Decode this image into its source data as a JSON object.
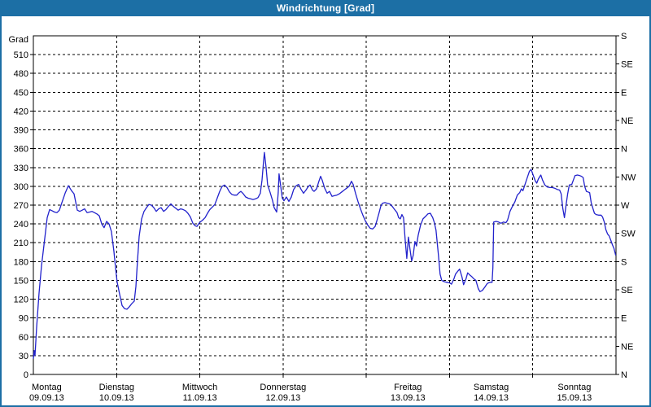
{
  "window": {
    "title": "Windrichtung [Grad]",
    "chrome_color": "#1c6fa5"
  },
  "chart_data": {
    "type": "line",
    "title": "Windrichtung [Grad]",
    "grid": "dashed-horizontal-every-30deg-and-vertical-day-boundaries",
    "y_axis_left": {
      "label": "Grad",
      "min": 0,
      "max": 540,
      "tick_step": 30,
      "ticks": [
        0,
        30,
        60,
        90,
        120,
        150,
        180,
        210,
        240,
        270,
        300,
        330,
        360,
        390,
        420,
        450,
        480,
        510
      ]
    },
    "y_axis_right": {
      "tick_step_deg": 45,
      "labels_bottom_to_top": [
        "N",
        "NE",
        "E",
        "SE",
        "S",
        "SW",
        "W",
        "NW",
        "N",
        "NE",
        "E",
        "SE",
        "S"
      ]
    },
    "x_axis": {
      "days": [
        {
          "name": "Montag",
          "date": "09.09.13"
        },
        {
          "name": "Dienstag",
          "date": "10.09.13"
        },
        {
          "name": "Mittwoch",
          "date": "11.09.13"
        },
        {
          "name": "Donnerstag",
          "date": "12.09.13"
        },
        {
          "name": "Freitag",
          "date": "13.09.13"
        },
        {
          "name": "Samstag",
          "date": "14.09.13"
        },
        {
          "name": "Sonntag",
          "date": "15.09.13"
        }
      ]
    },
    "series": [
      {
        "name": "Windrichtung",
        "color": "#2222cc",
        "x_unit": "days_since_monday_start",
        "y_unit": "degrees",
        "points": [
          [
            0.0,
            25
          ],
          [
            0.01,
            38
          ],
          [
            0.02,
            30
          ],
          [
            0.039,
            75
          ],
          [
            0.068,
            130
          ],
          [
            0.098,
            173
          ],
          [
            0.137,
            217
          ],
          [
            0.166,
            250
          ],
          [
            0.196,
            263
          ],
          [
            0.225,
            261
          ],
          [
            0.254,
            259
          ],
          [
            0.284,
            258
          ],
          [
            0.313,
            262
          ],
          [
            0.332,
            270
          ],
          [
            0.381,
            289
          ],
          [
            0.42,
            301
          ],
          [
            0.44,
            297
          ],
          [
            0.459,
            293
          ],
          [
            0.489,
            288
          ],
          [
            0.528,
            262
          ],
          [
            0.557,
            260
          ],
          [
            0.587,
            262
          ],
          [
            0.616,
            264
          ],
          [
            0.645,
            258
          ],
          [
            0.675,
            259
          ],
          [
            0.704,
            260
          ],
          [
            0.733,
            258
          ],
          [
            0.763,
            256
          ],
          [
            0.792,
            253
          ],
          [
            0.821,
            240
          ],
          [
            0.85,
            234
          ],
          [
            0.88,
            244
          ],
          [
            0.909,
            240
          ],
          [
            0.938,
            228
          ],
          [
            0.968,
            196
          ],
          [
            0.987,
            170
          ],
          [
            1.007,
            147
          ],
          [
            1.036,
            128
          ],
          [
            1.066,
            110
          ],
          [
            1.095,
            105
          ],
          [
            1.124,
            104
          ],
          [
            1.154,
            108
          ],
          [
            1.183,
            113
          ],
          [
            1.212,
            117
          ],
          [
            1.232,
            140
          ],
          [
            1.251,
            182
          ],
          [
            1.271,
            220
          ],
          [
            1.3,
            248
          ],
          [
            1.33,
            260
          ],
          [
            1.359,
            266
          ],
          [
            1.388,
            271
          ],
          [
            1.418,
            270
          ],
          [
            1.447,
            266
          ],
          [
            1.476,
            260
          ],
          [
            1.506,
            264
          ],
          [
            1.535,
            266
          ],
          [
            1.564,
            260
          ],
          [
            1.594,
            263
          ],
          [
            1.623,
            268
          ],
          [
            1.652,
            272
          ],
          [
            1.682,
            268
          ],
          [
            1.711,
            265
          ],
          [
            1.74,
            262
          ],
          [
            1.77,
            264
          ],
          [
            1.799,
            263
          ],
          [
            1.828,
            261
          ],
          [
            1.857,
            257
          ],
          [
            1.887,
            251
          ],
          [
            1.916,
            241
          ],
          [
            1.945,
            237
          ],
          [
            1.965,
            236
          ],
          [
            1.985,
            240
          ],
          [
            2.004,
            243
          ],
          [
            2.033,
            246
          ],
          [
            2.063,
            250
          ],
          [
            2.092,
            257
          ],
          [
            2.121,
            263
          ],
          [
            2.151,
            267
          ],
          [
            2.18,
            271
          ],
          [
            2.209,
            281
          ],
          [
            2.239,
            292
          ],
          [
            2.268,
            300
          ],
          [
            2.297,
            302
          ],
          [
            2.327,
            298
          ],
          [
            2.356,
            291
          ],
          [
            2.385,
            287
          ],
          [
            2.415,
            286
          ],
          [
            2.444,
            286
          ],
          [
            2.464,
            289
          ],
          [
            2.493,
            292
          ],
          [
            2.522,
            288
          ],
          [
            2.551,
            283
          ],
          [
            2.581,
            281
          ],
          [
            2.61,
            280
          ],
          [
            2.639,
            279
          ],
          [
            2.669,
            280
          ],
          [
            2.698,
            282
          ],
          [
            2.727,
            289
          ],
          [
            2.747,
            310
          ],
          [
            2.766,
            340
          ],
          [
            2.776,
            354
          ],
          [
            2.796,
            330
          ],
          [
            2.815,
            302
          ],
          [
            2.845,
            290
          ],
          [
            2.874,
            277
          ],
          [
            2.893,
            266
          ],
          [
            2.923,
            259
          ],
          [
            2.942,
            290
          ],
          [
            2.952,
            320
          ],
          [
            2.972,
            300
          ],
          [
            2.991,
            281
          ],
          [
            3.011,
            277
          ],
          [
            3.04,
            283
          ],
          [
            3.07,
            276
          ],
          [
            3.099,
            283
          ],
          [
            3.128,
            295
          ],
          [
            3.158,
            301
          ],
          [
            3.187,
            303
          ],
          [
            3.216,
            295
          ],
          [
            3.246,
            289
          ],
          [
            3.275,
            294
          ],
          [
            3.304,
            300
          ],
          [
            3.324,
            302
          ],
          [
            3.353,
            294
          ],
          [
            3.373,
            292
          ],
          [
            3.402,
            296
          ],
          [
            3.431,
            308
          ],
          [
            3.451,
            316
          ],
          [
            3.47,
            310
          ],
          [
            3.5,
            297
          ],
          [
            3.529,
            289
          ],
          [
            3.558,
            292
          ],
          [
            3.588,
            284
          ],
          [
            3.617,
            285
          ],
          [
            3.646,
            286
          ],
          [
            3.676,
            288
          ],
          [
            3.705,
            291
          ],
          [
            3.734,
            294
          ],
          [
            3.764,
            297
          ],
          [
            3.793,
            300
          ],
          [
            3.822,
            308
          ],
          [
            3.842,
            303
          ],
          [
            3.871,
            289
          ],
          [
            3.9,
            276
          ],
          [
            3.93,
            264
          ],
          [
            3.959,
            254
          ],
          [
            3.988,
            245
          ],
          [
            4.018,
            238
          ],
          [
            4.047,
            233
          ],
          [
            4.076,
            232
          ],
          [
            4.106,
            236
          ],
          [
            4.125,
            244
          ],
          [
            4.154,
            258
          ],
          [
            4.174,
            268
          ],
          [
            4.193,
            273
          ],
          [
            4.223,
            274
          ],
          [
            4.252,
            273
          ],
          [
            4.281,
            272
          ],
          [
            4.311,
            268
          ],
          [
            4.34,
            263
          ],
          [
            4.369,
            258
          ],
          [
            4.389,
            250
          ],
          [
            4.408,
            248
          ],
          [
            4.428,
            255
          ],
          [
            4.447,
            250
          ],
          [
            4.467,
            215
          ],
          [
            4.486,
            185
          ],
          [
            4.506,
            219
          ],
          [
            4.525,
            200
          ],
          [
            4.545,
            181
          ],
          [
            4.564,
            190
          ],
          [
            4.584,
            212
          ],
          [
            4.603,
            205
          ],
          [
            4.623,
            222
          ],
          [
            4.652,
            238
          ],
          [
            4.681,
            248
          ],
          [
            4.711,
            252
          ],
          [
            4.74,
            256
          ],
          [
            4.769,
            257
          ],
          [
            4.798,
            250
          ],
          [
            4.818,
            242
          ],
          [
            4.837,
            230
          ],
          [
            4.867,
            190
          ],
          [
            4.886,
            160
          ],
          [
            4.906,
            150
          ],
          [
            4.935,
            148
          ],
          [
            4.964,
            147
          ],
          [
            5.003,
            146
          ],
          [
            5.023,
            144
          ],
          [
            5.052,
            152
          ],
          [
            5.072,
            160
          ],
          [
            5.101,
            165
          ],
          [
            5.121,
            168
          ],
          [
            5.15,
            155
          ],
          [
            5.169,
            143
          ],
          [
            5.199,
            153
          ],
          [
            5.218,
            162
          ],
          [
            5.248,
            158
          ],
          [
            5.267,
            156
          ],
          [
            5.296,
            152
          ],
          [
            5.316,
            150
          ],
          [
            5.345,
            137
          ],
          [
            5.365,
            132
          ],
          [
            5.394,
            134
          ],
          [
            5.423,
            139
          ],
          [
            5.453,
            145
          ],
          [
            5.482,
            147
          ],
          [
            5.511,
            147
          ],
          [
            5.521,
            170
          ],
          [
            5.531,
            243
          ],
          [
            5.56,
            244
          ],
          [
            5.589,
            243
          ],
          [
            5.619,
            241
          ],
          [
            5.648,
            243
          ],
          [
            5.677,
            242
          ],
          [
            5.697,
            246
          ],
          [
            5.726,
            260
          ],
          [
            5.755,
            268
          ],
          [
            5.785,
            275
          ],
          [
            5.814,
            286
          ],
          [
            5.843,
            290
          ],
          [
            5.863,
            296
          ],
          [
            5.882,
            293
          ],
          [
            5.902,
            301
          ],
          [
            5.931,
            313
          ],
          [
            5.96,
            324
          ],
          [
            5.98,
            327
          ],
          [
            5.999,
            320
          ],
          [
            6.029,
            309
          ],
          [
            6.048,
            305
          ],
          [
            6.068,
            312
          ],
          [
            6.097,
            318
          ],
          [
            6.117,
            310
          ],
          [
            6.146,
            302
          ],
          [
            6.175,
            299
          ],
          [
            6.205,
            298
          ],
          [
            6.234,
            298
          ],
          [
            6.263,
            297
          ],
          [
            6.293,
            295
          ],
          [
            6.322,
            294
          ],
          [
            6.341,
            288
          ],
          [
            6.361,
            265
          ],
          [
            6.38,
            250
          ],
          [
            6.4,
            270
          ],
          [
            6.419,
            288
          ],
          [
            6.439,
            302
          ],
          [
            6.468,
            303
          ],
          [
            6.488,
            310
          ],
          [
            6.507,
            317
          ],
          [
            6.537,
            318
          ],
          [
            6.566,
            317
          ],
          [
            6.585,
            316
          ],
          [
            6.605,
            314
          ],
          [
            6.624,
            300
          ],
          [
            6.644,
            292
          ],
          [
            6.663,
            291
          ],
          [
            6.683,
            290
          ],
          [
            6.702,
            274
          ],
          [
            6.722,
            265
          ],
          [
            6.741,
            257
          ],
          [
            6.761,
            255
          ],
          [
            6.79,
            254
          ],
          [
            6.82,
            254
          ],
          [
            6.839,
            251
          ],
          [
            6.859,
            243
          ],
          [
            6.878,
            231
          ],
          [
            6.898,
            224
          ],
          [
            6.917,
            221
          ],
          [
            6.937,
            214
          ],
          [
            6.956,
            207
          ],
          [
            6.976,
            201
          ],
          [
            6.996,
            190
          ]
        ]
      }
    ]
  }
}
